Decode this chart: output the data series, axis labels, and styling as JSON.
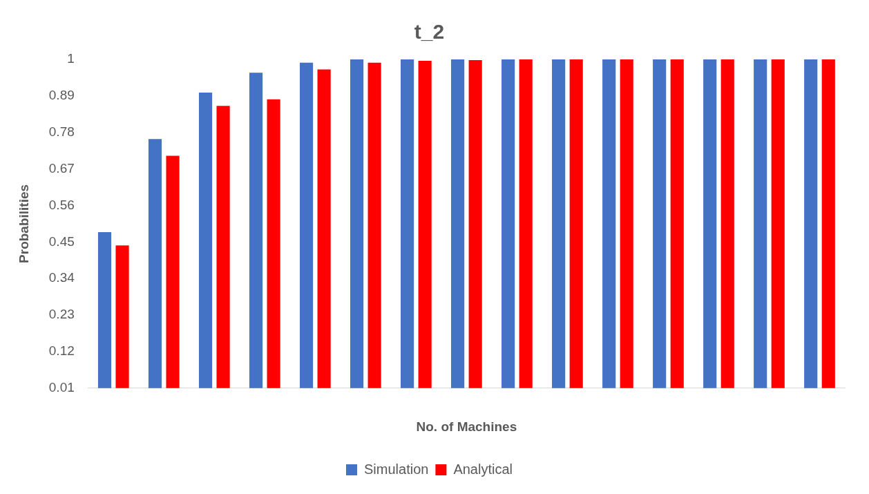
{
  "chart_data": {
    "type": "bar",
    "title": "t_2",
    "xlabel": "No. of Machines",
    "ylabel": "Probabilities",
    "categories": [
      null,
      null,
      null,
      null,
      null,
      null,
      null,
      null,
      null,
      null,
      null,
      null,
      null,
      null,
      null
    ],
    "series": [
      {
        "name": "Simulation",
        "color": "#4472c4",
        "values": [
          0.48,
          0.76,
          0.9,
          0.96,
          0.99,
          1,
          1,
          1,
          1,
          1,
          1,
          1,
          1,
          1,
          1
        ]
      },
      {
        "name": "Analytical",
        "color": "#ff0000",
        "values": [
          0.44,
          0.71,
          0.86,
          0.88,
          0.97,
          0.99,
          0.996,
          0.998,
          1,
          1,
          1,
          1,
          1,
          1,
          1
        ]
      }
    ],
    "ylim": [
      0.01,
      1
    ],
    "yticks": [
      0.01,
      0.12,
      0.23,
      0.34,
      0.45,
      0.56,
      0.67,
      0.78,
      0.89,
      1
    ],
    "grid": false,
    "legend": "bottom"
  }
}
